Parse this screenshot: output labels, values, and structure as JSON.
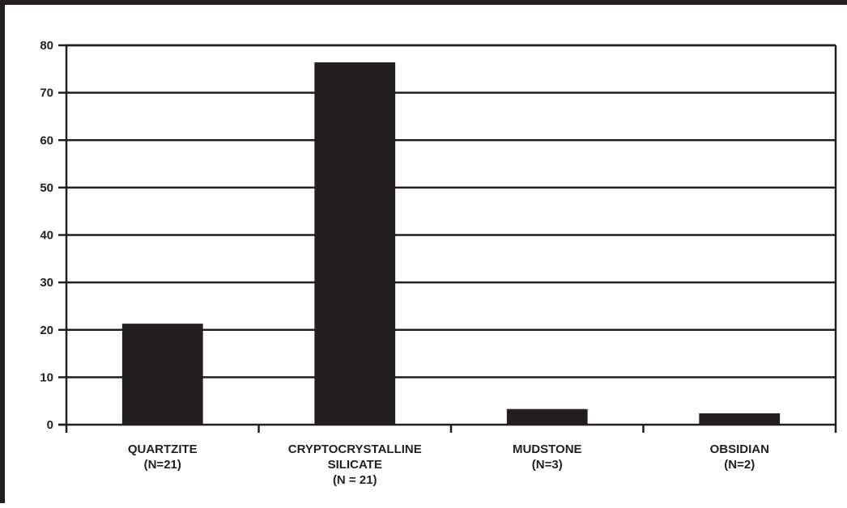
{
  "chart_data": {
    "type": "bar",
    "categories": [
      [
        "QUARTZITE",
        "(N=21)"
      ],
      [
        "CRYPTOCRYSTALLINE",
        "SILICATE",
        "(N = 21)"
      ],
      [
        "MUDSTONE",
        "(N=3)"
      ],
      [
        "OBSIDIAN",
        "(N=2)"
      ]
    ],
    "values": [
      21.3,
      76.4,
      3.3,
      2.4
    ],
    "ylim": [
      0,
      80
    ],
    "yticks": [
      0,
      10,
      20,
      30,
      40,
      50,
      60,
      70,
      80
    ],
    "grid": true,
    "legend": "none",
    "colors": {
      "bar": "#231f20",
      "axis": "#231f20",
      "background": "#ffffff"
    }
  }
}
